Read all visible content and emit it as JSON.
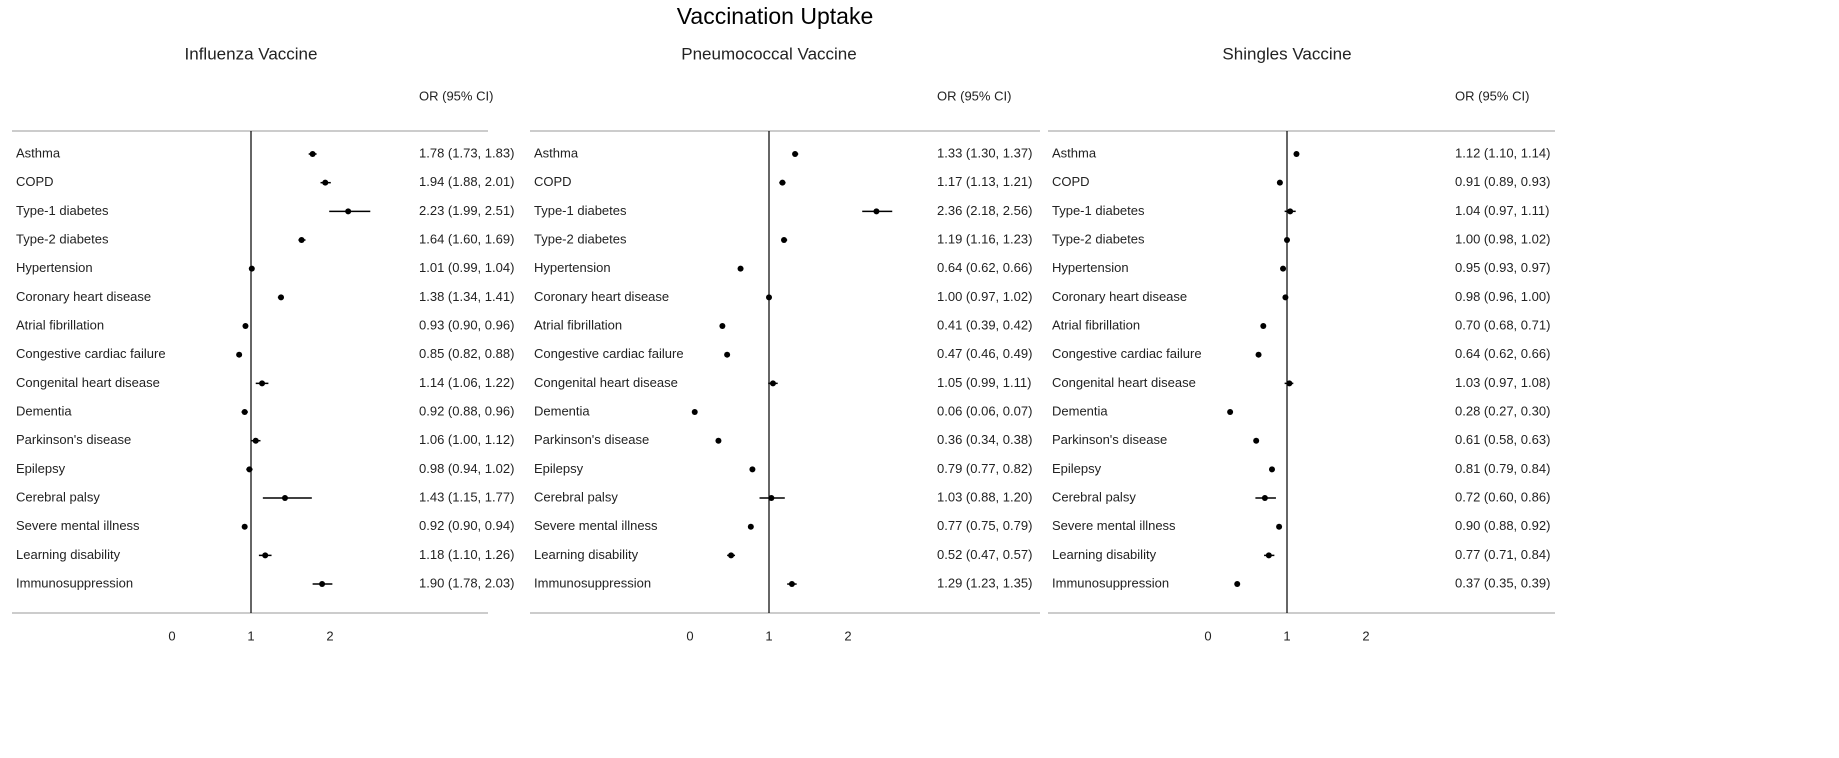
{
  "title": "Vaccination Uptake",
  "chart_data": [
    {
      "type": "forest",
      "title": "Influenza Vaccine",
      "column_header": "OR (95% CI)",
      "categories": [
        "Asthma",
        "COPD",
        "Type-1 diabetes",
        "Type-2 diabetes",
        "Hypertension",
        "Coronary heart disease",
        "Atrial fibrillation",
        "Congestive cardiac failure",
        "Congenital heart disease",
        "Dementia",
        "Parkinson's disease",
        "Epilepsy",
        "Cerebral palsy",
        "Severe mental illness",
        "Learning disability",
        "Immunosuppression"
      ],
      "values": [
        1.78,
        1.94,
        2.23,
        1.64,
        1.01,
        1.38,
        0.93,
        0.85,
        1.14,
        0.92,
        1.06,
        0.98,
        1.43,
        0.92,
        1.18,
        1.9
      ],
      "lower": [
        1.73,
        1.88,
        1.99,
        1.6,
        0.99,
        1.34,
        0.9,
        0.82,
        1.06,
        0.88,
        1.0,
        0.94,
        1.15,
        0.9,
        1.1,
        1.78
      ],
      "upper": [
        1.83,
        2.01,
        2.51,
        1.69,
        1.04,
        1.41,
        0.96,
        0.88,
        1.22,
        0.96,
        1.12,
        1.02,
        1.77,
        0.94,
        1.26,
        2.03
      ],
      "value_labels": [
        "1.78 (1.73, 1.83)",
        "1.94 (1.88, 2.01)",
        "2.23 (1.99, 2.51)",
        "1.64 (1.60, 1.69)",
        "1.01 (0.99, 1.04)",
        "1.38 (1.34, 1.41)",
        "0.93 (0.90, 0.96)",
        "0.85 (0.82, 0.88)",
        "1.14 (1.06, 1.22)",
        "0.92 (0.88, 0.96)",
        "1.06 (1.00, 1.12)",
        "0.98 (0.94, 1.02)",
        "1.43 (1.15, 1.77)",
        "0.92 (0.90, 0.94)",
        "1.18 (1.10, 1.26)",
        "1.90 (1.78, 2.03)"
      ],
      "xlim": [
        -2,
        3
      ],
      "xticks": [
        0,
        1,
        2
      ],
      "refline": 1,
      "color": "#000000"
    },
    {
      "type": "forest",
      "title": "Pneumococcal Vaccine",
      "column_header": "OR (95% CI)",
      "categories": [
        "Asthma",
        "COPD",
        "Type-1 diabetes",
        "Type-2 diabetes",
        "Hypertension",
        "Coronary heart disease",
        "Atrial fibrillation",
        "Congestive cardiac failure",
        "Congenital heart disease",
        "Dementia",
        "Parkinson's disease",
        "Epilepsy",
        "Cerebral palsy",
        "Severe mental illness",
        "Learning disability",
        "Immunosuppression"
      ],
      "values": [
        1.33,
        1.17,
        2.36,
        1.19,
        0.64,
        1,
        0.41,
        0.47,
        1.05,
        0.06,
        0.36,
        0.79,
        1.03,
        0.77,
        0.52,
        1.29
      ],
      "lower": [
        1.3,
        1.13,
        2.18,
        1.16,
        0.62,
        0.97,
        0.39,
        0.46,
        0.99,
        0.06,
        0.34,
        0.77,
        0.88,
        0.75,
        0.47,
        1.23
      ],
      "upper": [
        1.37,
        1.21,
        2.56,
        1.23,
        0.66,
        1.02,
        0.42,
        0.49,
        1.11,
        0.07,
        0.38,
        0.82,
        1.2,
        0.79,
        0.57,
        1.35
      ],
      "value_labels": [
        "1.33 (1.30, 1.37)",
        "1.17 (1.13, 1.21)",
        "2.36 (2.18, 2.56)",
        "1.19 (1.16, 1.23)",
        "0.64 (0.62, 0.66)",
        "1.00 (0.97, 1.02)",
        "0.41 (0.39, 0.42)",
        "0.47 (0.46, 0.49)",
        "1.05 (0.99, 1.11)",
        "0.06 (0.06, 0.07)",
        "0.36 (0.34, 0.38)",
        "0.79 (0.77, 0.82)",
        "1.03 (0.88, 1.20)",
        "0.77 (0.75, 0.79)",
        "0.52 (0.47, 0.57)",
        "1.29 (1.23, 1.35)"
      ],
      "xlim": [
        -2,
        3
      ],
      "xticks": [
        0,
        1,
        2
      ],
      "refline": 1,
      "color": "#000000"
    },
    {
      "type": "forest",
      "title": "Shingles Vaccine",
      "column_header": "OR (95% CI)",
      "categories": [
        "Asthma",
        "COPD",
        "Type-1 diabetes",
        "Type-2 diabetes",
        "Hypertension",
        "Coronary heart disease",
        "Atrial fibrillation",
        "Congestive cardiac failure",
        "Congenital heart disease",
        "Dementia",
        "Parkinson's disease",
        "Epilepsy",
        "Cerebral palsy",
        "Severe mental illness",
        "Learning disability",
        "Immunosuppression"
      ],
      "values": [
        1.12,
        0.91,
        1.04,
        1,
        0.95,
        0.98,
        0.7,
        0.64,
        1.03,
        0.28,
        0.61,
        0.81,
        0.72,
        0.9,
        0.77,
        0.37
      ],
      "lower": [
        1.1,
        0.89,
        0.97,
        0.98,
        0.93,
        0.96,
        0.68,
        0.62,
        0.97,
        0.27,
        0.58,
        0.79,
        0.6,
        0.88,
        0.71,
        0.35
      ],
      "upper": [
        1.14,
        0.93,
        1.11,
        1.02,
        0.97,
        1,
        0.71,
        0.66,
        1.08,
        0.3,
        0.63,
        0.84,
        0.86,
        0.92,
        0.84,
        0.39
      ],
      "value_labels": [
        "1.12 (1.10, 1.14)",
        "0.91 (0.89, 0.93)",
        "1.04 (0.97, 1.11)",
        "1.00 (0.98, 1.02)",
        "0.95 (0.93, 0.97)",
        "0.98 (0.96, 1.00)",
        "0.70 (0.68, 0.71)",
        "0.64 (0.62, 0.66)",
        "1.03 (0.97, 1.08)",
        "0.28 (0.27, 0.30)",
        "0.61 (0.58, 0.63)",
        "0.81 (0.79, 0.84)",
        "0.72 (0.60, 0.86)",
        "0.90 (0.88, 0.92)",
        "0.77 (0.71, 0.84)",
        "0.37 (0.35, 0.39)"
      ],
      "xlim": [
        -2,
        3
      ],
      "xticks": [
        0,
        1,
        2
      ],
      "refline": 1,
      "color": "#000000"
    }
  ]
}
